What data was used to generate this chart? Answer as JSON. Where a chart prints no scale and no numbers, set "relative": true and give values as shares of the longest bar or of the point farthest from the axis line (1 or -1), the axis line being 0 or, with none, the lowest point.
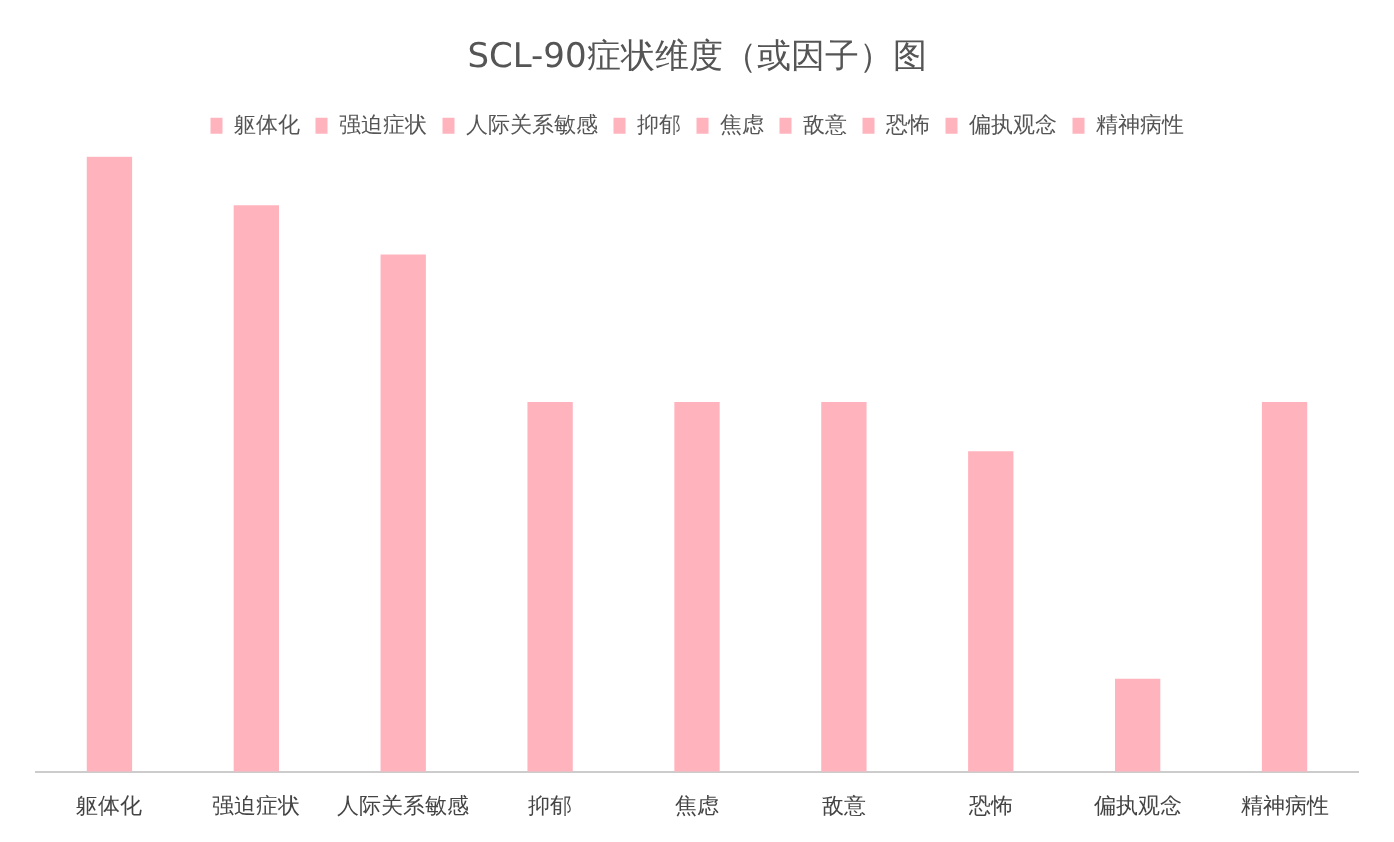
{
  "chart_data": {
    "type": "bar",
    "title": "SCL-90症状维度（或因子）图",
    "categories": [
      "躯体化",
      "强迫症状",
      "人际关系敏感",
      "抑郁",
      "焦虑",
      "敌意",
      "恐怖",
      "偏执观念",
      "精神病性"
    ],
    "series": [
      {
        "name": "躯体化",
        "color": "#ffb3bd",
        "values": [
          1,
          null,
          null,
          null,
          null,
          null,
          null,
          null,
          null
        ]
      },
      {
        "name": "强迫症状",
        "color": "#ffb3bd",
        "values": [
          null,
          0.92,
          null,
          null,
          null,
          null,
          null,
          null,
          null
        ]
      },
      {
        "name": "人际关系敏感",
        "color": "#ffb3bd",
        "values": [
          null,
          null,
          0.84,
          null,
          null,
          null,
          null,
          null,
          null
        ]
      },
      {
        "name": "抑郁",
        "color": "#ffb3bd",
        "values": [
          null,
          null,
          null,
          0.6,
          null,
          null,
          null,
          null,
          null
        ]
      },
      {
        "name": "焦虑",
        "color": "#ffb3bd",
        "values": [
          null,
          null,
          null,
          null,
          0.6,
          null,
          null,
          null,
          null
        ]
      },
      {
        "name": "敌意",
        "color": "#ffb3bd",
        "values": [
          null,
          null,
          null,
          null,
          null,
          0.6,
          null,
          null,
          null
        ]
      },
      {
        "name": "恐怖",
        "color": "#ffb3bd",
        "values": [
          null,
          null,
          null,
          null,
          null,
          null,
          0.52,
          null,
          null
        ]
      },
      {
        "name": "偏执观念",
        "color": "#ffb3bd",
        "values": [
          null,
          null,
          null,
          null,
          null,
          null,
          null,
          0.15,
          null
        ]
      },
      {
        "name": "精神病性",
        "color": "#ffb3bd",
        "values": [
          null,
          null,
          null,
          null,
          null,
          null,
          null,
          null,
          0.6
        ]
      }
    ],
    "relative": true,
    "legend": "top"
  }
}
